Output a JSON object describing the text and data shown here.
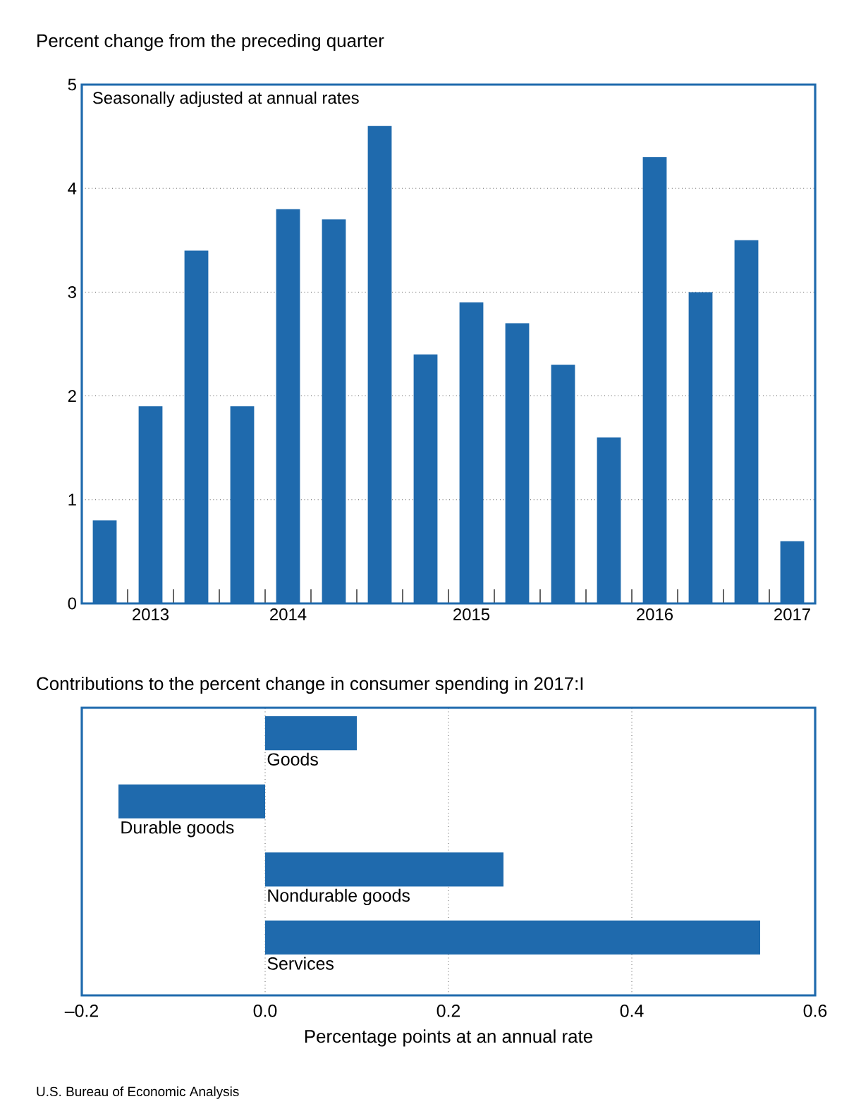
{
  "chart_data": [
    {
      "type": "bar",
      "title": "Percent change from the preceding quarter",
      "annotations": [
        "Seasonally adjusted at annual rates"
      ],
      "categories": [
        null,
        "2013",
        null,
        null,
        "2014",
        null,
        null,
        null,
        "2015",
        null,
        null,
        null,
        "2016",
        null,
        null,
        "2017"
      ],
      "values": [
        0.8,
        1.9,
        3.4,
        1.9,
        3.8,
        3.7,
        4.6,
        2.4,
        2.9,
        2.7,
        2.3,
        1.6,
        4.3,
        3.0,
        3.5,
        0.6
      ],
      "color": "#1f6aad",
      "ylim": [
        0,
        5
      ],
      "yticks": [
        0,
        1,
        2,
        3,
        4,
        5
      ],
      "grid": "y"
    },
    {
      "type": "bar",
      "orientation": "horizontal",
      "title": "Contributions to the percent change in consumer spending in 2017:I",
      "xlabel": "Percentage points at an annual rate",
      "annotations": [
        "U.S. Bureau of Economic Analysis"
      ],
      "categories": [
        "Goods",
        "Durable goods",
        "Nondurable goods",
        "Services"
      ],
      "values": [
        0.1,
        -0.16,
        0.26,
        0.54
      ],
      "color": "#1f6aad",
      "xlim": [
        -0.2,
        0.6
      ],
      "xticks": [
        {
          "value": -0.2,
          "label": "–0.2"
        },
        {
          "value": 0,
          "label": "0.0"
        },
        0.2,
        0.4,
        0.6
      ],
      "grid": "x"
    }
  ]
}
